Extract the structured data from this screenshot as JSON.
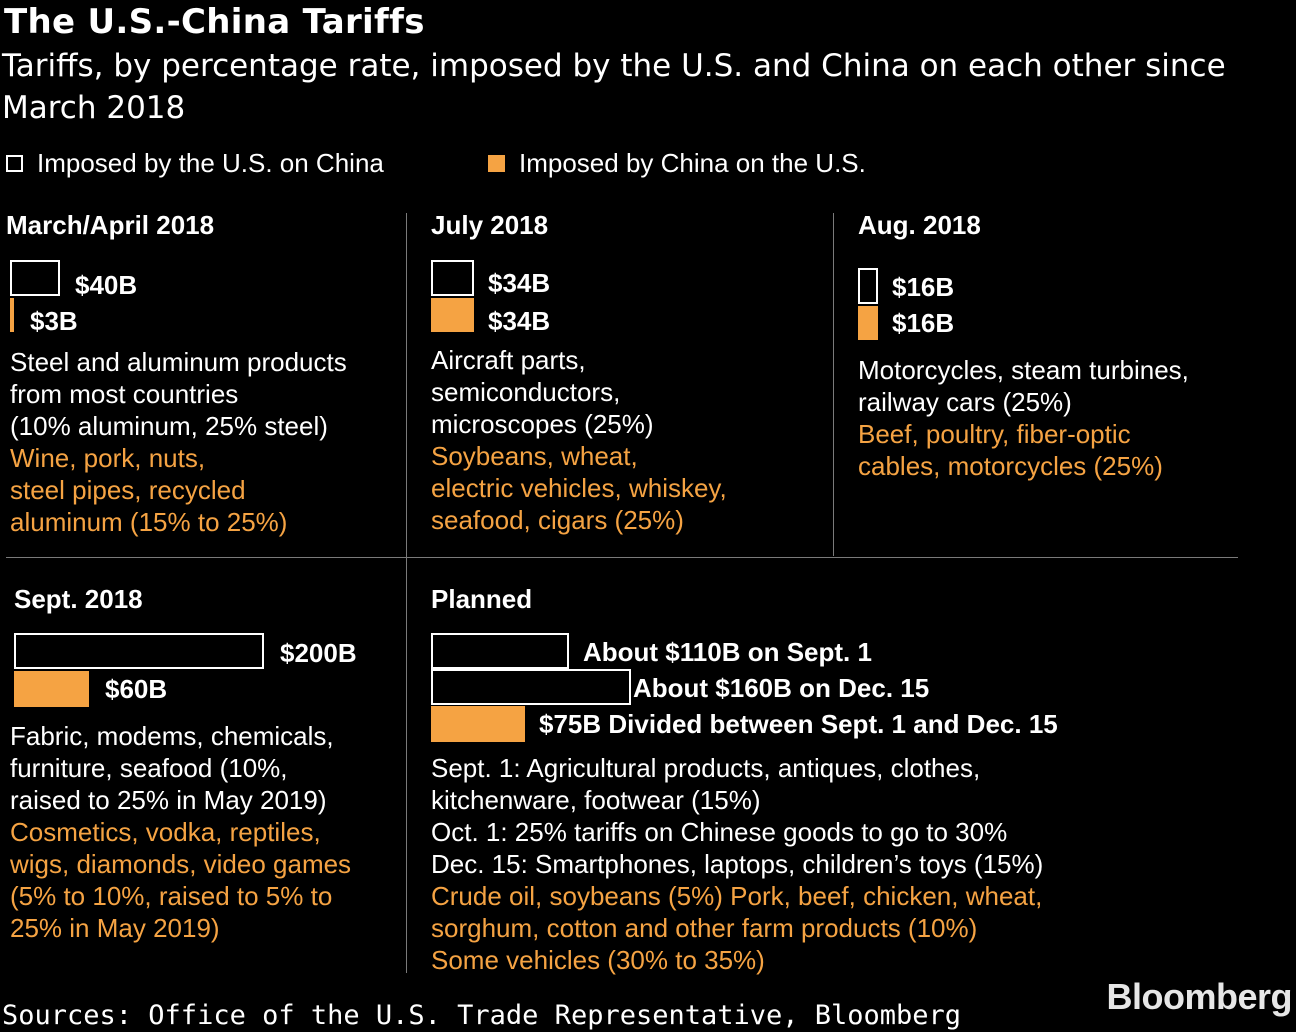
{
  "title": "The U.S.-China Tariffs",
  "subtitle": "Tariffs, by percentage rate, imposed by the U.S. and China on each other since March 2018",
  "legend": {
    "us": "Imposed by the U.S. on China",
    "cn": "Imposed by China on the U.S.",
    "colors": {
      "us": "#000000",
      "us_border": "#ffffff",
      "cn": "#f5a343"
    }
  },
  "panels": {
    "mar_apr_2018": {
      "title": "March/April 2018",
      "us_label": "$40B",
      "cn_label": "$3B",
      "us_desc": [
        "Steel and aluminum products",
        "from most countries",
        "(10% aluminum, 25% steel)"
      ],
      "cn_desc": [
        "Wine, pork, nuts,",
        "steel pipes, recycled",
        "aluminum (15% to 25%)"
      ]
    },
    "jul_2018": {
      "title": "July 2018",
      "us_label": "$34B",
      "cn_label": "$34B",
      "us_desc": [
        "Aircraft parts,",
        "semiconductors,",
        "microscopes (25%)"
      ],
      "cn_desc": [
        "Soybeans, wheat,",
        "electric vehicles, whiskey,",
        "seafood, cigars (25%)"
      ]
    },
    "aug_2018": {
      "title": "Aug. 2018",
      "us_label": "$16B",
      "cn_label": "$16B",
      "us_desc": [
        "Motorcycles, steam turbines,",
        "railway cars (25%)"
      ],
      "cn_desc": [
        "Beef, poultry, fiber-optic",
        "cables, motorcycles (25%)"
      ]
    },
    "sep_2018": {
      "title": "Sept. 2018",
      "us_label": "$200B",
      "cn_label": "$60B",
      "us_desc": [
        "Fabric, modems, chemicals,",
        "furniture, seafood (10%,",
        "raised to 25% in May 2019)"
      ],
      "cn_desc": [
        "Cosmetics, vodka, reptiles,",
        "wigs, diamonds, video games",
        "(5% to 10%, raised to 5% to",
        "25% in May 2019)"
      ]
    },
    "planned": {
      "title": "Planned",
      "us1_label": "About $110B on Sept. 1",
      "us2_label": "About $160B on Dec. 15",
      "cn_label": "$75B Divided between Sept. 1 and Dec. 15",
      "us_desc": [
        "Sept. 1: Agricultural products, antiques, clothes,",
        "kitchenware, footwear (15%)",
        "Oct. 1: 25% tariffs on Chinese goods to go to 30%",
        "Dec. 15: Smartphones, laptops, children’s toys (15%)"
      ],
      "cn_desc": [
        "Crude oil, soybeans (5%) Pork, beef, chicken, wheat,",
        "sorghum, cotton and other farm products (10%)",
        "Some vehicles (30% to 35%)"
      ]
    }
  },
  "chart_data": {
    "type": "bar",
    "unit": "billion USD of goods",
    "series": [
      {
        "name": "Imposed by the U.S. on China",
        "color": "#000000"
      },
      {
        "name": "Imposed by China on the U.S.",
        "color": "#f5a343"
      }
    ],
    "categories": [
      "March/April 2018",
      "July 2018",
      "Aug. 2018",
      "Sept. 2018",
      "Planned"
    ],
    "values": {
      "March/April 2018": {
        "us": [
          40
        ],
        "cn": [
          3
        ]
      },
      "July 2018": {
        "us": [
          34
        ],
        "cn": [
          34
        ]
      },
      "Aug. 2018": {
        "us": [
          16
        ],
        "cn": [
          16
        ]
      },
      "Sept. 2018": {
        "us": [
          200
        ],
        "cn": [
          60
        ]
      },
      "Planned": {
        "us": [
          110,
          160
        ],
        "cn": [
          75
        ]
      }
    }
  },
  "source": "Sources: Office of the U.S. Trade Representative, Bloomberg",
  "logo": "Bloomberg"
}
